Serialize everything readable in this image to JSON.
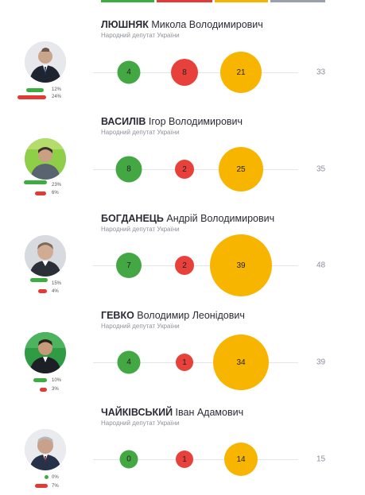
{
  "deputies": [
    {
      "surname": "ЛЮШНЯК",
      "given": "Микола Володимирович",
      "role": "Народний депутат України",
      "green": "4",
      "red": "8",
      "yellow": "21",
      "total": "33",
      "pct_green": "12%",
      "pct_red": "24%"
    },
    {
      "surname": "ВАСИЛІВ",
      "given": "Ігор Володимирович",
      "role": "Народний депутат України",
      "green": "8",
      "red": "2",
      "yellow": "25",
      "total": "35",
      "pct_green": "23%",
      "pct_red": "6%"
    },
    {
      "surname": "БОГДАНЕЦЬ",
      "given": "Андрій Володимирович",
      "role": "Народний депутат України",
      "green": "7",
      "red": "2",
      "yellow": "39",
      "total": "48",
      "pct_green": "15%",
      "pct_red": "4%"
    },
    {
      "surname": "ГЕВКО",
      "given": "Володимир Леонідович",
      "role": "Народний депутат України",
      "green": "4",
      "red": "1",
      "yellow": "34",
      "total": "39",
      "pct_green": "10%",
      "pct_red": "3%"
    },
    {
      "surname": "ЧАЙКІВСЬКИЙ",
      "given": "Іван Адамович",
      "role": "Народний депутат України",
      "green": "0",
      "red": "1",
      "yellow": "14",
      "total": "15",
      "pct_green": "0%",
      "pct_red": "7%"
    }
  ],
  "colors": {
    "green": "#43a843",
    "red": "#e8413b",
    "yellow": "#f7b500",
    "gray": "#9aa0ab"
  }
}
